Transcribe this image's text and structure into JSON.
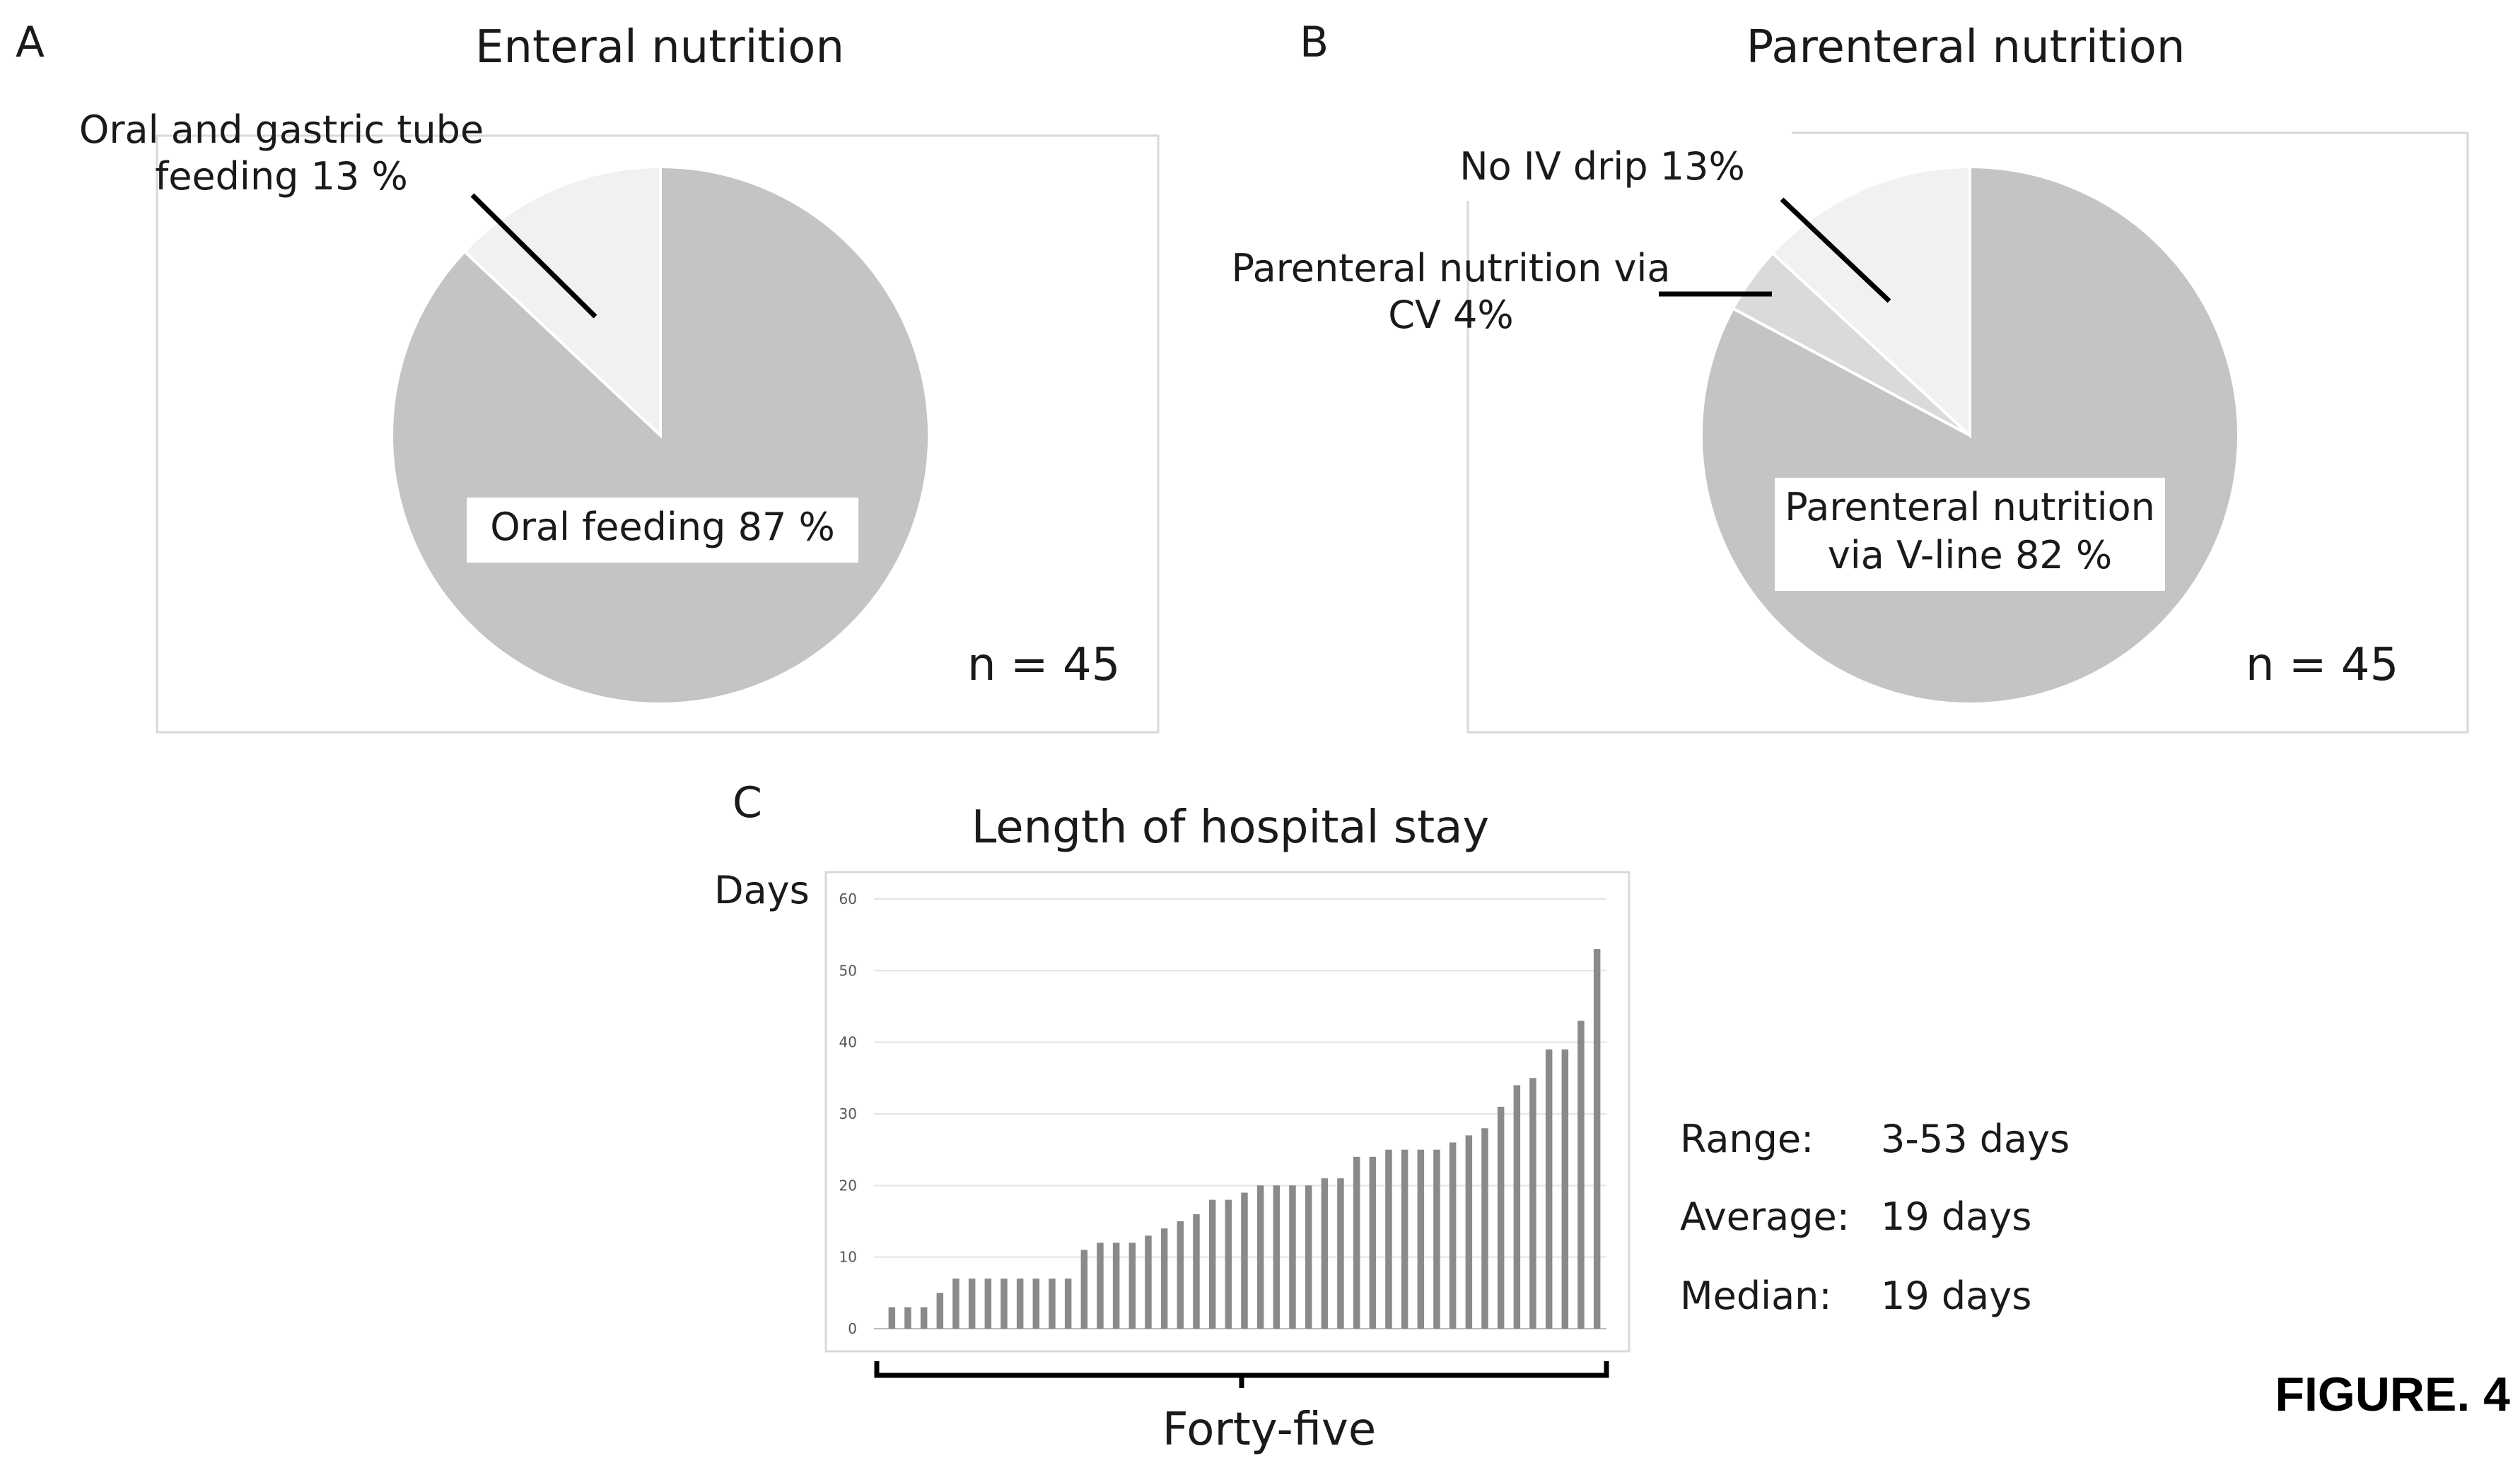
{
  "figure_label": "FIGURE. 4",
  "colors": {
    "major_slice": "#c4c4c4",
    "minor_slice": "#f1f1f1",
    "cv_slice": "#dadada",
    "bar": "#8a8a8a",
    "frame": "#d9d9d9"
  },
  "chart_data": [
    {
      "panel": "A",
      "type": "pie",
      "title": "Enteral nutrition",
      "n_label": "n = 45",
      "slices": [
        {
          "label_lines": [
            "Oral feeding 87 %"
          ],
          "value": 87
        },
        {
          "label_lines": [
            "Oral and gastric tube",
            "feeding 13 %"
          ],
          "value": 13
        }
      ]
    },
    {
      "panel": "B",
      "type": "pie",
      "title": "Parenteral nutrition",
      "n_label": "n = 45",
      "slices": [
        {
          "label_lines": [
            "Parenteral nutrition",
            "via V-line  82 %"
          ],
          "value": 82
        },
        {
          "label_lines": [
            "Parenteral nutrition via",
            "CV 4%"
          ],
          "value": 4
        },
        {
          "label_lines": [
            "No IV drip 13%"
          ],
          "value": 13
        }
      ]
    },
    {
      "panel": "C",
      "type": "bar",
      "title": "Length of hospital stay",
      "ylabel": "Days",
      "xlabel": "Forty-five",
      "ylim": [
        0,
        60
      ],
      "yticks": [
        0,
        10,
        20,
        30,
        40,
        50,
        60
      ],
      "grid": true,
      "values": [
        3,
        3,
        3,
        5,
        7,
        7,
        7,
        7,
        7,
        7,
        7,
        7,
        11,
        12,
        12,
        12,
        13,
        14,
        15,
        16,
        18,
        18,
        19,
        20,
        20,
        20,
        20,
        21,
        21,
        24,
        24,
        25,
        25,
        25,
        25,
        26,
        27,
        28,
        31,
        34,
        35,
        39,
        39,
        43,
        53
      ],
      "stats": [
        {
          "label": "Range:",
          "value": "3-53 days"
        },
        {
          "label": "Average:",
          "value": "19 days"
        },
        {
          "label": "Median:",
          "value": "19 days"
        }
      ]
    }
  ]
}
